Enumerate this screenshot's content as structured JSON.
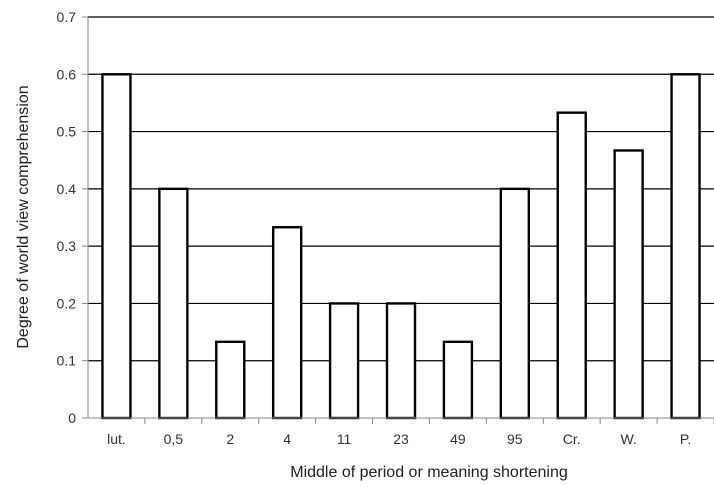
{
  "chart_data": {
    "type": "bar",
    "title": "",
    "xlabel": "Middle of period or meaning shortening",
    "ylabel": "Degree of world view comprehension",
    "categories": [
      "lut.",
      "0,5",
      "2",
      "4",
      "11",
      "23",
      "49",
      "95",
      "Cr.",
      "W.",
      "P."
    ],
    "values": [
      0.6,
      0.4,
      0.133,
      0.333,
      0.2,
      0.2,
      0.133,
      0.4,
      0.533,
      0.467,
      0.6
    ],
    "ylim": [
      0,
      0.7
    ],
    "yticks": [
      "0",
      "0.1",
      "0.2",
      "0.3",
      "0.4",
      "0.5",
      "0.6",
      "0.7"
    ],
    "grid": "horizontal",
    "legend": "none",
    "colors": {
      "bar_fill": "#ffffff",
      "bar_stroke": "#000000",
      "grid": "#000000",
      "axis": "#888888",
      "text": "#333333"
    }
  }
}
